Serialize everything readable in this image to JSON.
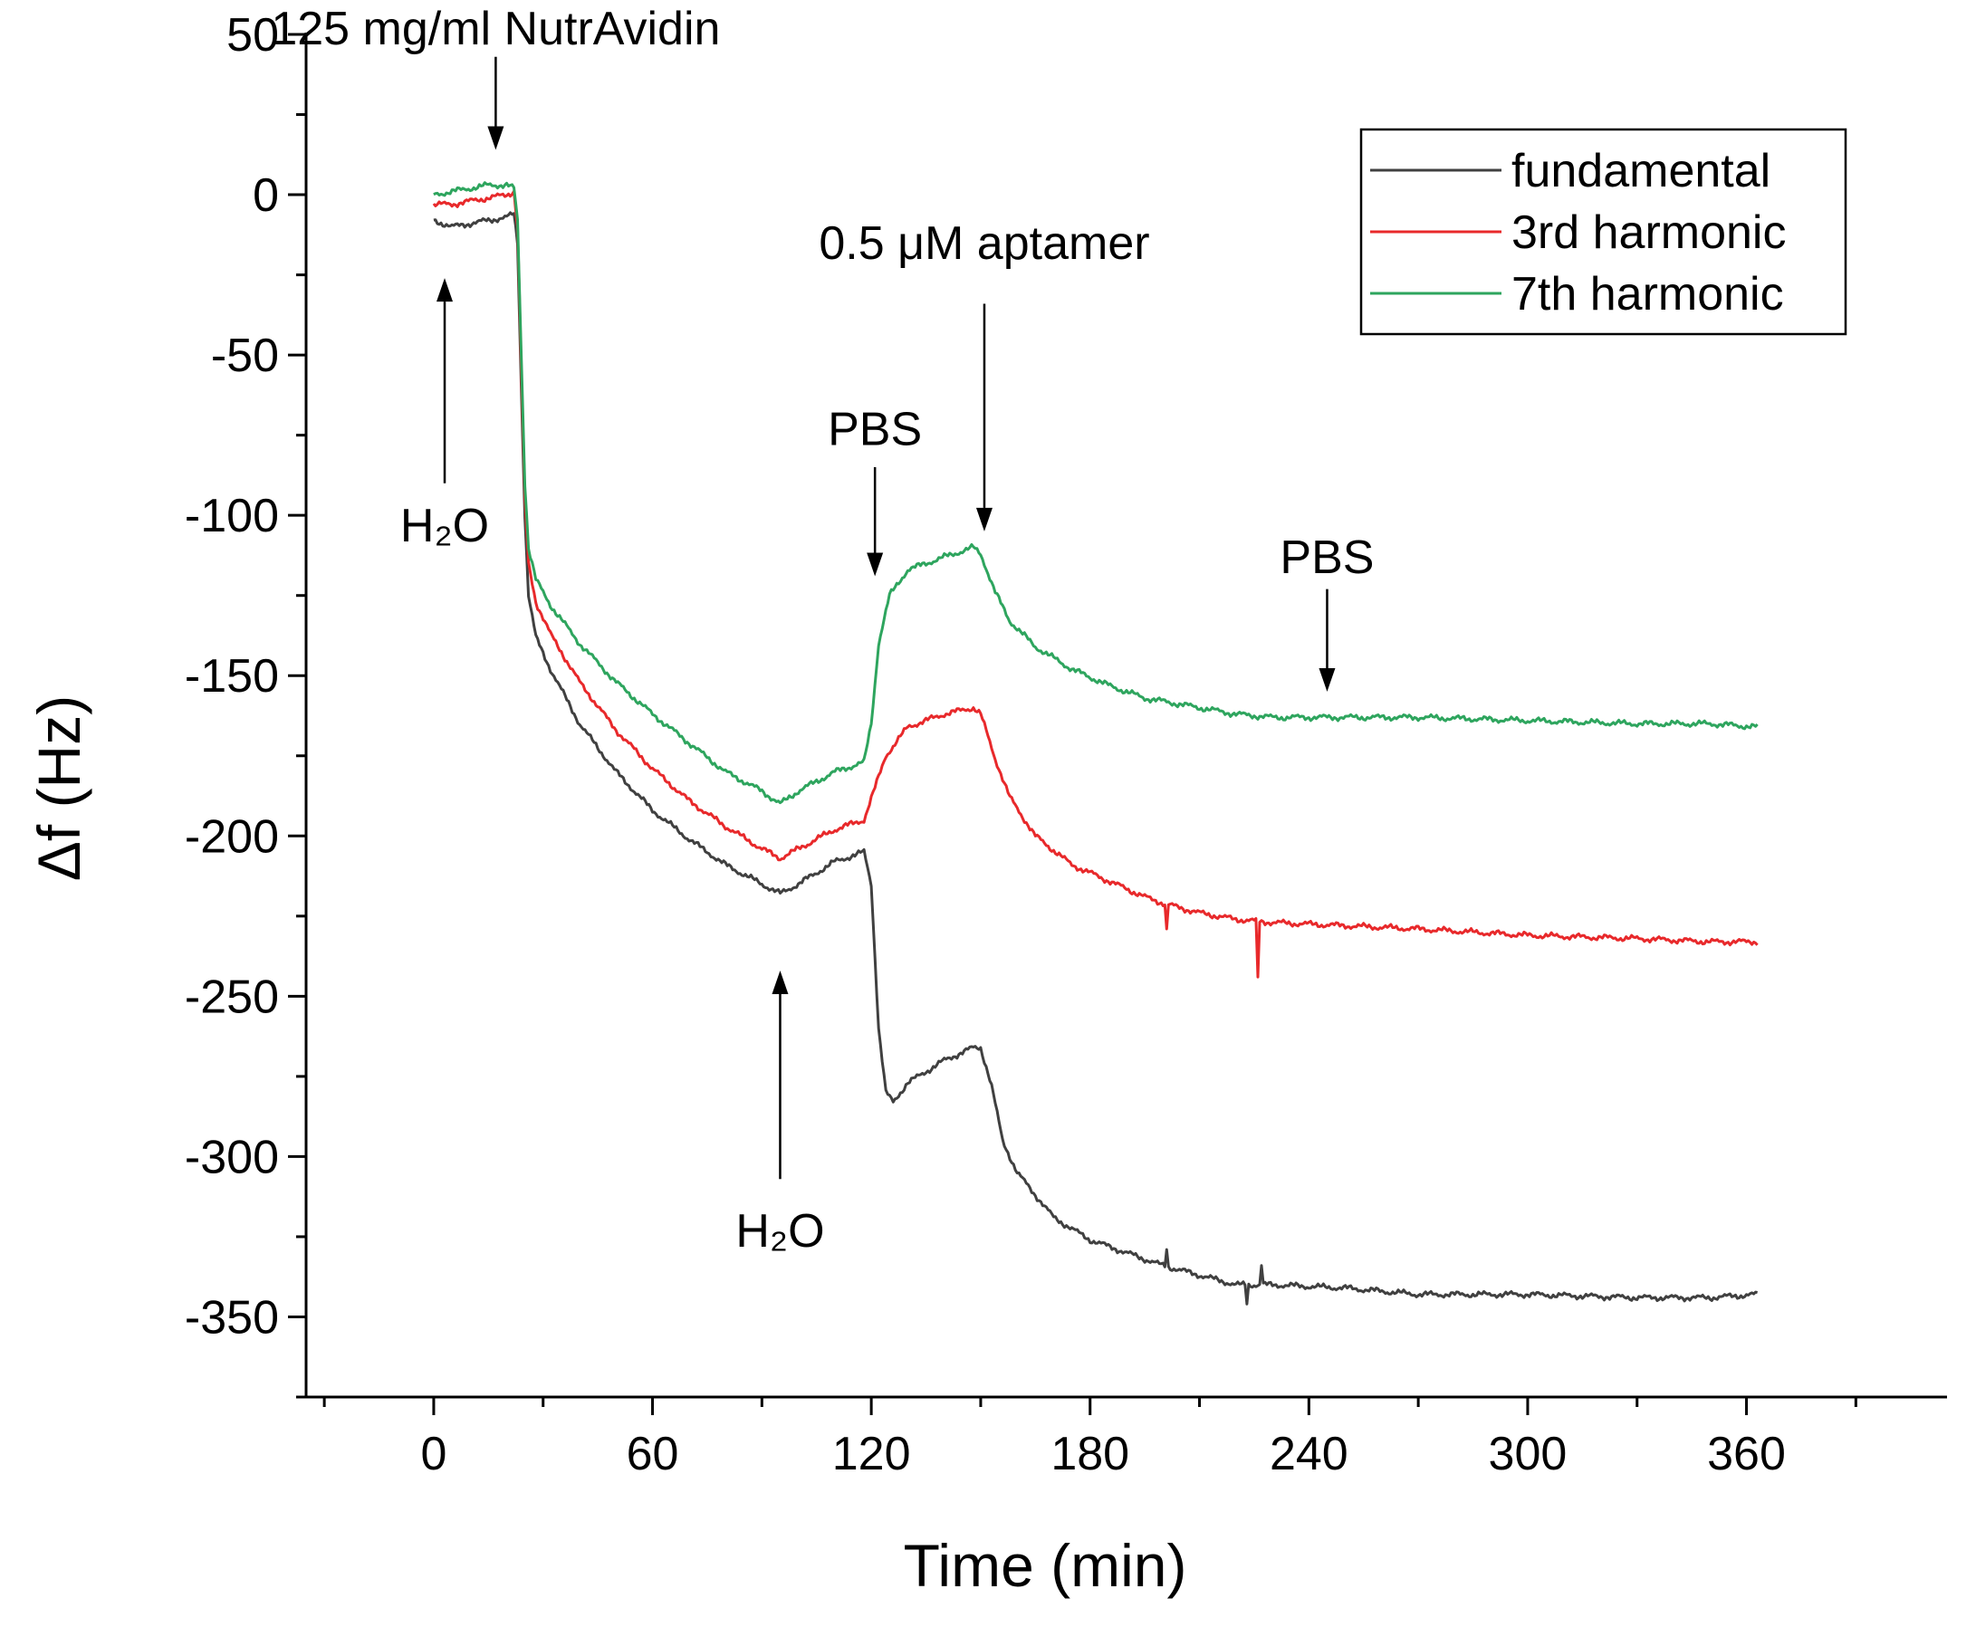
{
  "chart_data": {
    "type": "line",
    "title": "",
    "xlabel": "Time (min)",
    "ylabel": "Δf (Hz)",
    "xlim": [
      -35,
      415
    ],
    "ylim": [
      -375,
      50
    ],
    "x_ticks": [
      0,
      60,
      120,
      180,
      240,
      300,
      360
    ],
    "x_minor_ticks": [
      -30,
      30,
      90,
      150,
      210,
      270,
      330,
      390
    ],
    "y_ticks": [
      50,
      0,
      -50,
      -100,
      -150,
      -200,
      -250,
      -300,
      -350
    ],
    "y_tick_labels": [
      "50",
      "0",
      "-50",
      "-100",
      "-150",
      "-200",
      "-250",
      "-300",
      "-350"
    ],
    "legend": {
      "position": "top-right",
      "entries": [
        "fundamental",
        "3rd harmonic",
        "7th harmonic"
      ]
    },
    "series": [
      {
        "name": "fundamental",
        "color": "#404040",
        "points": [
          [
            0,
            -8
          ],
          [
            5,
            -10
          ],
          [
            10,
            -9
          ],
          [
            15,
            -8
          ],
          [
            20,
            -7
          ],
          [
            22,
            -6
          ],
          [
            23,
            -15
          ],
          [
            24,
            -60
          ],
          [
            25,
            -100
          ],
          [
            26,
            -125
          ],
          [
            28,
            -138
          ],
          [
            32,
            -148
          ],
          [
            40,
            -165
          ],
          [
            50,
            -180
          ],
          [
            60,
            -192
          ],
          [
            70,
            -201
          ],
          [
            80,
            -209
          ],
          [
            90,
            -215
          ],
          [
            95,
            -218
          ],
          [
            100,
            -215
          ],
          [
            110,
            -208
          ],
          [
            118,
            -205
          ],
          [
            120,
            -215
          ],
          [
            122,
            -260
          ],
          [
            124,
            -280
          ],
          [
            126,
            -283
          ],
          [
            130,
            -277
          ],
          [
            140,
            -270
          ],
          [
            148,
            -266
          ],
          [
            150,
            -266
          ],
          [
            153,
            -278
          ],
          [
            156,
            -295
          ],
          [
            160,
            -305
          ],
          [
            170,
            -319
          ],
          [
            180,
            -326
          ],
          [
            190,
            -330
          ],
          [
            200,
            -334
          ],
          [
            210,
            -337
          ],
          [
            220,
            -340
          ],
          [
            230,
            -340
          ],
          [
            250,
            -341
          ],
          [
            270,
            -343
          ],
          [
            300,
            -343
          ],
          [
            330,
            -344
          ],
          [
            350,
            -344
          ],
          [
            363,
            -343
          ]
        ]
      },
      {
        "name": "3rd harmonic",
        "color": "#e8292b",
        "points": [
          [
            0,
            -3
          ],
          [
            5,
            -3
          ],
          [
            10,
            -2
          ],
          [
            15,
            -1
          ],
          [
            20,
            0
          ],
          [
            22,
            1
          ],
          [
            23,
            -10
          ],
          [
            24,
            -55
          ],
          [
            25,
            -95
          ],
          [
            26,
            -115
          ],
          [
            28,
            -127
          ],
          [
            32,
            -137
          ],
          [
            40,
            -152
          ],
          [
            50,
            -167
          ],
          [
            60,
            -179
          ],
          [
            70,
            -189
          ],
          [
            80,
            -197
          ],
          [
            90,
            -204
          ],
          [
            95,
            -207
          ],
          [
            100,
            -204
          ],
          [
            110,
            -198
          ],
          [
            118,
            -195
          ],
          [
            121,
            -185
          ],
          [
            124,
            -175
          ],
          [
            130,
            -166
          ],
          [
            140,
            -162
          ],
          [
            148,
            -160
          ],
          [
            150,
            -162
          ],
          [
            154,
            -176
          ],
          [
            158,
            -188
          ],
          [
            165,
            -200
          ],
          [
            175,
            -209
          ],
          [
            185,
            -214
          ],
          [
            195,
            -219
          ],
          [
            200,
            -221
          ],
          [
            210,
            -224
          ],
          [
            220,
            -226
          ],
          [
            230,
            -227
          ],
          [
            250,
            -228
          ],
          [
            270,
            -229
          ],
          [
            300,
            -231
          ],
          [
            330,
            -232
          ],
          [
            350,
            -233
          ],
          [
            363,
            -233
          ]
        ]
      },
      {
        "name": "7th harmonic",
        "color": "#2ea55e",
        "points": [
          [
            0,
            0
          ],
          [
            5,
            1
          ],
          [
            10,
            2
          ],
          [
            15,
            3
          ],
          [
            20,
            3
          ],
          [
            22,
            2
          ],
          [
            23,
            -8
          ],
          [
            24,
            -50
          ],
          [
            25,
            -90
          ],
          [
            26,
            -110
          ],
          [
            28,
            -120
          ],
          [
            32,
            -128
          ],
          [
            40,
            -140
          ],
          [
            50,
            -152
          ],
          [
            60,
            -162
          ],
          [
            70,
            -171
          ],
          [
            80,
            -180
          ],
          [
            90,
            -186
          ],
          [
            95,
            -190
          ],
          [
            100,
            -186
          ],
          [
            110,
            -180
          ],
          [
            118,
            -177
          ],
          [
            120,
            -165
          ],
          [
            122,
            -140
          ],
          [
            125,
            -125
          ],
          [
            130,
            -117
          ],
          [
            140,
            -113
          ],
          [
            148,
            -110
          ],
          [
            150,
            -112
          ],
          [
            154,
            -124
          ],
          [
            158,
            -133
          ],
          [
            165,
            -141
          ],
          [
            175,
            -148
          ],
          [
            185,
            -153
          ],
          [
            195,
            -157
          ],
          [
            210,
            -160
          ],
          [
            220,
            -162
          ],
          [
            230,
            -163
          ],
          [
            250,
            -163
          ],
          [
            270,
            -163
          ],
          [
            300,
            -164
          ],
          [
            330,
            -165
          ],
          [
            350,
            -165
          ],
          [
            363,
            -166
          ]
        ]
      }
    ],
    "spikes": [
      {
        "series": "3rd harmonic",
        "x": 201,
        "y": -229
      },
      {
        "series": "3rd harmonic",
        "x": 226,
        "y": -244
      },
      {
        "series": "fundamental",
        "x": 201,
        "y": -329
      },
      {
        "series": "fundamental",
        "x": 223,
        "y": -346
      },
      {
        "series": "fundamental",
        "x": 227,
        "y": -334
      }
    ],
    "annotations": [
      {
        "text": "125 mg/ml NutrAvidin",
        "x": 17,
        "y": 52,
        "direction": "down",
        "arrow_from": 43,
        "arrow_to": 14
      },
      {
        "text": "H₂O",
        "x": 3,
        "y": -103,
        "direction": "up",
        "arrow_from": -90,
        "arrow_to": -26
      },
      {
        "text": "PBS",
        "x": 121,
        "y": -73,
        "direction": "down",
        "arrow_from": -85,
        "arrow_to": -119
      },
      {
        "text": "0.5 μM aptamer",
        "x": 151,
        "y": -15,
        "direction": "down",
        "arrow_from": -34,
        "arrow_to": -105
      },
      {
        "text": "H₂O",
        "x": 95,
        "y": -323,
        "direction": "up",
        "arrow_from": -307,
        "arrow_to": -242
      },
      {
        "text": "PBS",
        "x": 245,
        "y": -113,
        "direction": "down",
        "arrow_from": -123,
        "arrow_to": -155
      }
    ]
  }
}
